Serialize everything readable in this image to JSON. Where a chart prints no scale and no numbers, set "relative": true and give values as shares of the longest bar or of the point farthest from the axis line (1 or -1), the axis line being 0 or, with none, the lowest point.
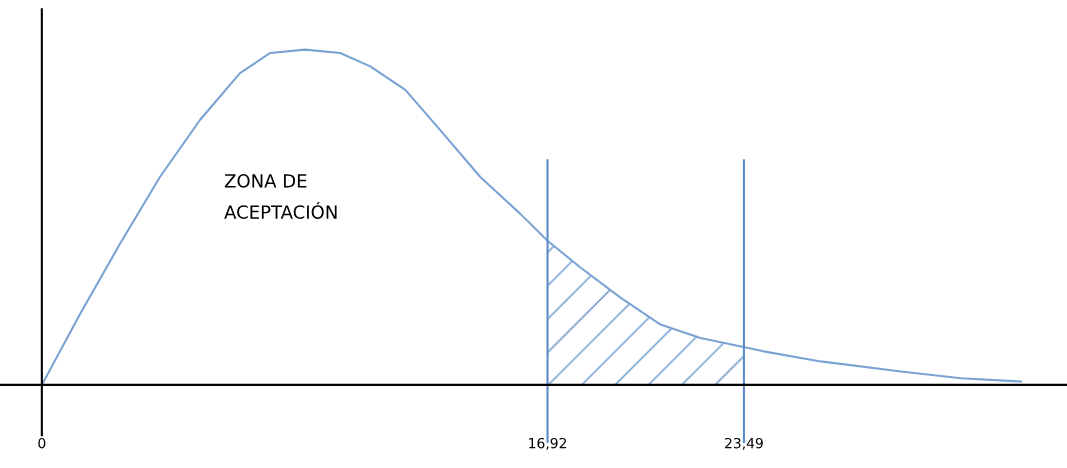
{
  "chart_data": {
    "type": "line",
    "relative": true,
    "x": [
      0,
      1.27,
      2.61,
      3.95,
      5.29,
      6.63,
      7.64,
      8.81,
      9.98,
      10.99,
      12.16,
      13.33,
      14.67,
      16.01,
      16.92,
      18.02,
      19.36,
      20.7,
      22.04,
      24.15,
      26.06,
      28.74,
      30.75,
      32.76
    ],
    "series": [
      {
        "color": "#7aa3d4",
        "values": [
          0,
          0.21,
          0.42,
          0.62,
          0.79,
          0.93,
          0.99,
          1.0,
          0.99,
          0.95,
          0.88,
          0.76,
          0.62,
          0.51,
          0.43,
          0.35,
          0.26,
          0.18,
          0.14,
          0.1,
          0.07,
          0.04,
          0.02,
          0.01
        ]
      }
    ],
    "xlim": [
      -1.4,
      34.3
    ],
    "xticks": [
      {
        "value": 0,
        "label": "0"
      },
      {
        "value": 16.92,
        "label": "16,92"
      },
      {
        "value": 23.49,
        "label": "23,49"
      }
    ],
    "ref_lines": [
      {
        "axis": "x",
        "value": 16.92,
        "color": "#5b8ac6"
      },
      {
        "axis": "x",
        "value": 23.49,
        "color": "#5b8ac6"
      }
    ],
    "bands": [
      {
        "axis": "x",
        "from": 16.92,
        "to": 23.49,
        "color": "#7aa3d4"
      }
    ],
    "annotations": [
      "ZONA DE\nACEPTACIÓN"
    ]
  }
}
